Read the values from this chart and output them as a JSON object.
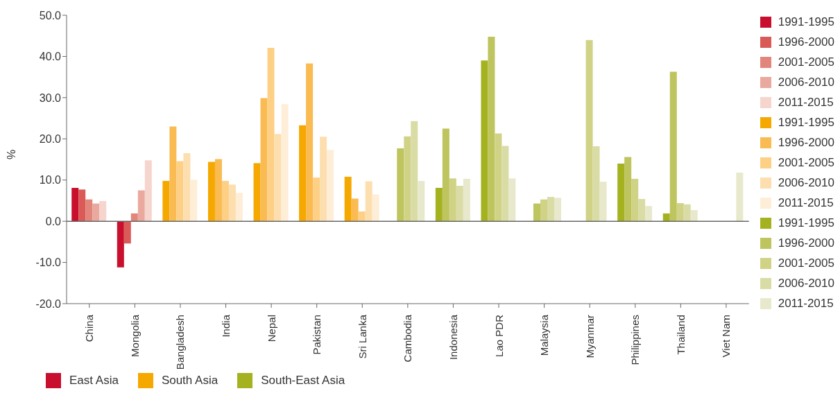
{
  "chart_data": {
    "type": "bar",
    "ylabel": "%",
    "categories": [
      "China",
      "Mongolia",
      "Bangladesh",
      "India",
      "Nepal",
      "Pakistan",
      "Sri Lanka",
      "Cambodia",
      "Indonesia",
      "Lao PDR",
      "Malaysia",
      "Myanmar",
      "Philippines",
      "Thailand",
      "Viet Nam"
    ],
    "series": [
      {
        "name": "1991-1995",
        "color": "#c8102e",
        "values": [
          8.1,
          -11.2,
          null,
          null,
          null,
          null,
          null,
          null,
          null,
          null,
          null,
          null,
          null,
          null,
          null
        ]
      },
      {
        "name": "1996-2000",
        "color": "#d95a56",
        "values": [
          7.7,
          -5.4,
          null,
          null,
          null,
          null,
          null,
          null,
          null,
          null,
          null,
          null,
          null,
          null,
          null
        ]
      },
      {
        "name": "2001-2005",
        "color": "#e2857a",
        "values": [
          5.3,
          1.9,
          null,
          null,
          null,
          null,
          null,
          null,
          null,
          null,
          null,
          null,
          null,
          null,
          null
        ]
      },
      {
        "name": "2006-2010",
        "color": "#eaa99f",
        "values": [
          4.3,
          7.5,
          null,
          null,
          null,
          null,
          null,
          null,
          null,
          null,
          null,
          null,
          null,
          null,
          null
        ]
      },
      {
        "name": "2011-2015",
        "color": "#f5d5cd",
        "values": [
          4.9,
          14.8,
          null,
          null,
          null,
          null,
          null,
          null,
          null,
          null,
          null,
          null,
          null,
          null,
          null
        ]
      },
      {
        "name": "1991-1995",
        "color": "#f5a800",
        "values": [
          null,
          null,
          9.8,
          14.4,
          14.1,
          23.3,
          10.8,
          null,
          null,
          null,
          null,
          null,
          null,
          null,
          null
        ]
      },
      {
        "name": "1996-2000",
        "color": "#fabb52",
        "values": [
          null,
          null,
          23.0,
          15.1,
          29.9,
          38.3,
          5.5,
          null,
          null,
          null,
          null,
          null,
          null,
          null,
          null
        ]
      },
      {
        "name": "2001-2005",
        "color": "#fdd086",
        "values": [
          null,
          null,
          14.6,
          9.8,
          42.1,
          10.6,
          2.4,
          null,
          null,
          null,
          null,
          null,
          null,
          null,
          null
        ]
      },
      {
        "name": "2006-2010",
        "color": "#fddfaf",
        "values": [
          null,
          null,
          16.5,
          8.9,
          21.2,
          20.5,
          9.7,
          null,
          null,
          null,
          null,
          null,
          null,
          null,
          null
        ]
      },
      {
        "name": "2011-2015",
        "color": "#feeed8",
        "values": [
          null,
          null,
          10.1,
          6.9,
          28.4,
          17.3,
          6.5,
          null,
          null,
          null,
          null,
          null,
          null,
          null,
          null
        ]
      },
      {
        "name": "1991-1995",
        "color": "#a5b220",
        "values": [
          null,
          null,
          null,
          null,
          null,
          null,
          null,
          null,
          8.1,
          39.0,
          null,
          null,
          14.0,
          1.9,
          null
        ]
      },
      {
        "name": "1996-2000",
        "color": "#bec45e",
        "values": [
          null,
          null,
          null,
          null,
          null,
          null,
          null,
          17.7,
          22.5,
          44.8,
          4.3,
          null,
          15.6,
          36.3,
          null
        ]
      },
      {
        "name": "2001-2005",
        "color": "#d0d386",
        "values": [
          null,
          null,
          null,
          null,
          null,
          null,
          null,
          20.6,
          10.4,
          21.3,
          5.3,
          44.0,
          10.3,
          4.4,
          null
        ]
      },
      {
        "name": "2006-2010",
        "color": "#dadca6",
        "values": [
          null,
          null,
          null,
          null,
          null,
          null,
          null,
          24.3,
          8.6,
          18.3,
          5.9,
          18.2,
          5.4,
          4.1,
          null
        ]
      },
      {
        "name": "2011-2015",
        "color": "#e8e9cc",
        "values": [
          null,
          null,
          null,
          null,
          null,
          null,
          null,
          9.8,
          10.3,
          10.4,
          5.7,
          9.6,
          3.7,
          2.7,
          11.8
        ]
      }
    ],
    "ylim": [
      -20,
      50
    ],
    "yticks": [
      {
        "value": -20,
        "label": "-20.0"
      },
      {
        "value": -10,
        "label": "-10.0"
      },
      {
        "value": 0,
        "label": "0.0"
      },
      {
        "value": 10,
        "label": "10.0"
      },
      {
        "value": 20,
        "label": "20.0"
      },
      {
        "value": 30,
        "label": "30.0"
      },
      {
        "value": 40,
        "label": "40.0"
      },
      {
        "value": 50,
        "label": "50.0"
      }
    ],
    "ref_lines": [
      {
        "axis": "y",
        "value": 0,
        "color": "#666666"
      }
    ],
    "legend": "right",
    "annotations": [
      "East Asia",
      "South Asia",
      "South-East Asia"
    ]
  }
}
